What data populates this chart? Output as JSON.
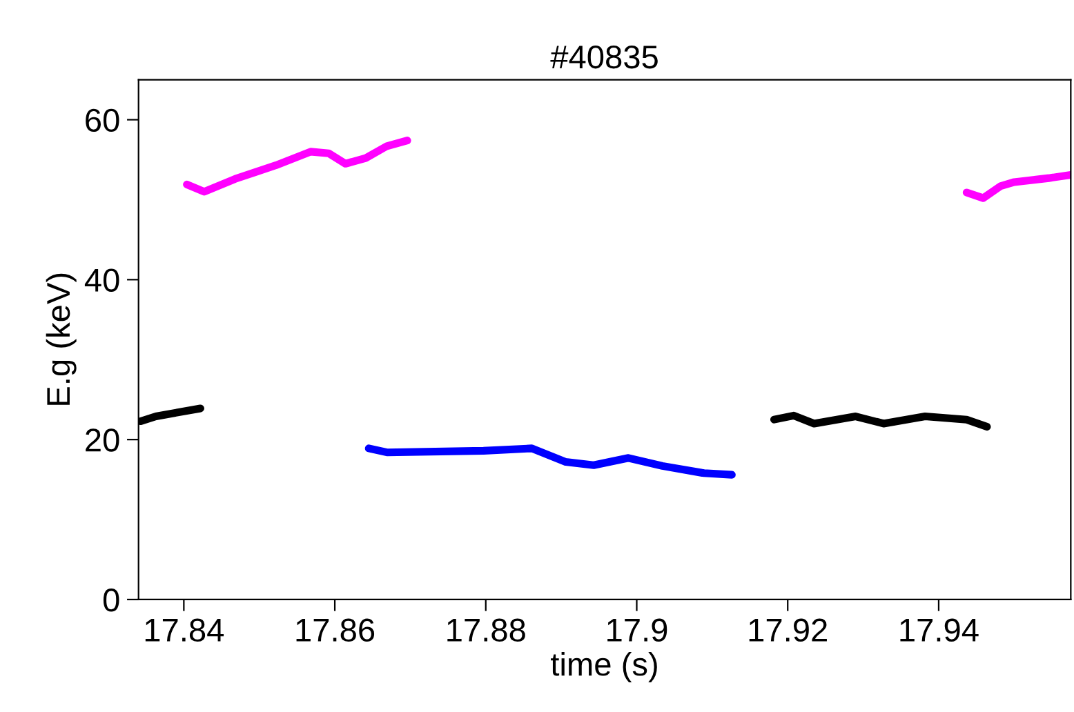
{
  "chart_data": {
    "type": "line",
    "title": "#40835",
    "xlabel": "time (s)",
    "ylabel": "E.g (keV)",
    "xlim": [
      17.834,
      17.9575
    ],
    "xticks": [
      17.84,
      17.86,
      17.88,
      17.9,
      17.92,
      17.94
    ],
    "ylim": [
      0,
      65
    ],
    "yticks": [
      0,
      20,
      40,
      60
    ],
    "grid": false,
    "legend": false,
    "marker": "none",
    "line_style": "solid",
    "series": [
      {
        "color": "#ff00ff",
        "x": [
          17.8404,
          17.8427,
          17.8468,
          17.8522,
          17.8568,
          17.8592,
          17.8614,
          17.8641,
          17.8669,
          17.8696
        ],
        "values": [
          51.9,
          51.0,
          52.6,
          54.3,
          56.0,
          55.8,
          54.5,
          55.2,
          56.7,
          57.4
        ]
      },
      {
        "color": "#000000",
        "x": [
          17.8343,
          17.8363,
          17.8422
        ],
        "values": [
          22.3,
          22.9,
          23.9
        ]
      },
      {
        "color": "#0000ff",
        "x": [
          17.8645,
          17.8669,
          17.8797,
          17.8861,
          17.8906,
          17.8943,
          17.8989,
          17.9034,
          17.9089,
          17.9126
        ],
        "values": [
          18.9,
          18.4,
          18.6,
          18.9,
          17.2,
          16.8,
          17.7,
          16.7,
          15.8,
          15.6
        ]
      },
      {
        "color": "#000000",
        "x": [
          17.9182,
          17.9208,
          17.9235,
          17.929,
          17.9327,
          17.9382,
          17.9437,
          17.9464
        ],
        "values": [
          22.5,
          23.0,
          22.0,
          22.9,
          22.0,
          22.9,
          22.5,
          21.6
        ]
      },
      {
        "color": "#ff00ff",
        "x": [
          17.9437,
          17.9459,
          17.9482,
          17.95,
          17.9546,
          17.9575
        ],
        "values": [
          50.9,
          50.2,
          51.7,
          52.2,
          52.7,
          53.1
        ]
      }
    ]
  }
}
